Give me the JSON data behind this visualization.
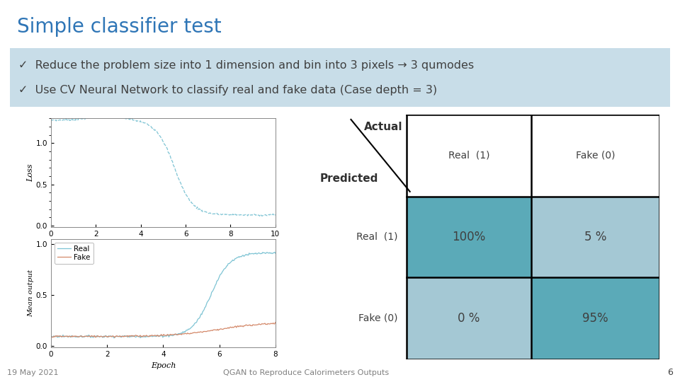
{
  "title": "Simple classifier test",
  "title_color": "#2E75B6",
  "title_bar_color": "#2E75B6",
  "bullet1": "Reduce the problem size into 1 dimension and bin into 3 pixels → 3 qumodes",
  "bullet2": "Use CV Neural Network to classify real and fake data (Case depth = 3)",
  "bullet_box_color": "#C8DDE8",
  "footer_date": "19 May 2021",
  "footer_title": "QGAN to Reproduce Calorimeters Outputs",
  "footer_page": "6",
  "loss_curve_color": "#7FC4D4",
  "mean_real_color": "#7FC4D4",
  "mean_fake_color": "#D4896A",
  "cm_colors": {
    "tp": "#5BAAB8",
    "tn": "#5BAAB8",
    "fp": "#A4C8D4",
    "fn": "#A4C8D4"
  },
  "cm_values": [
    [
      "100%",
      "5 %"
    ],
    [
      "0 %",
      "95%"
    ]
  ],
  "confusion_matrix_actual_col1": "Real  (1)",
  "confusion_matrix_actual_col2": "Fake (0)",
  "confusion_matrix_pred_row1": "Real  (1)",
  "confusion_matrix_pred_row2": "Fake (0)",
  "cm_actual_label": "Actual",
  "cm_predicted_label": "Predicted"
}
